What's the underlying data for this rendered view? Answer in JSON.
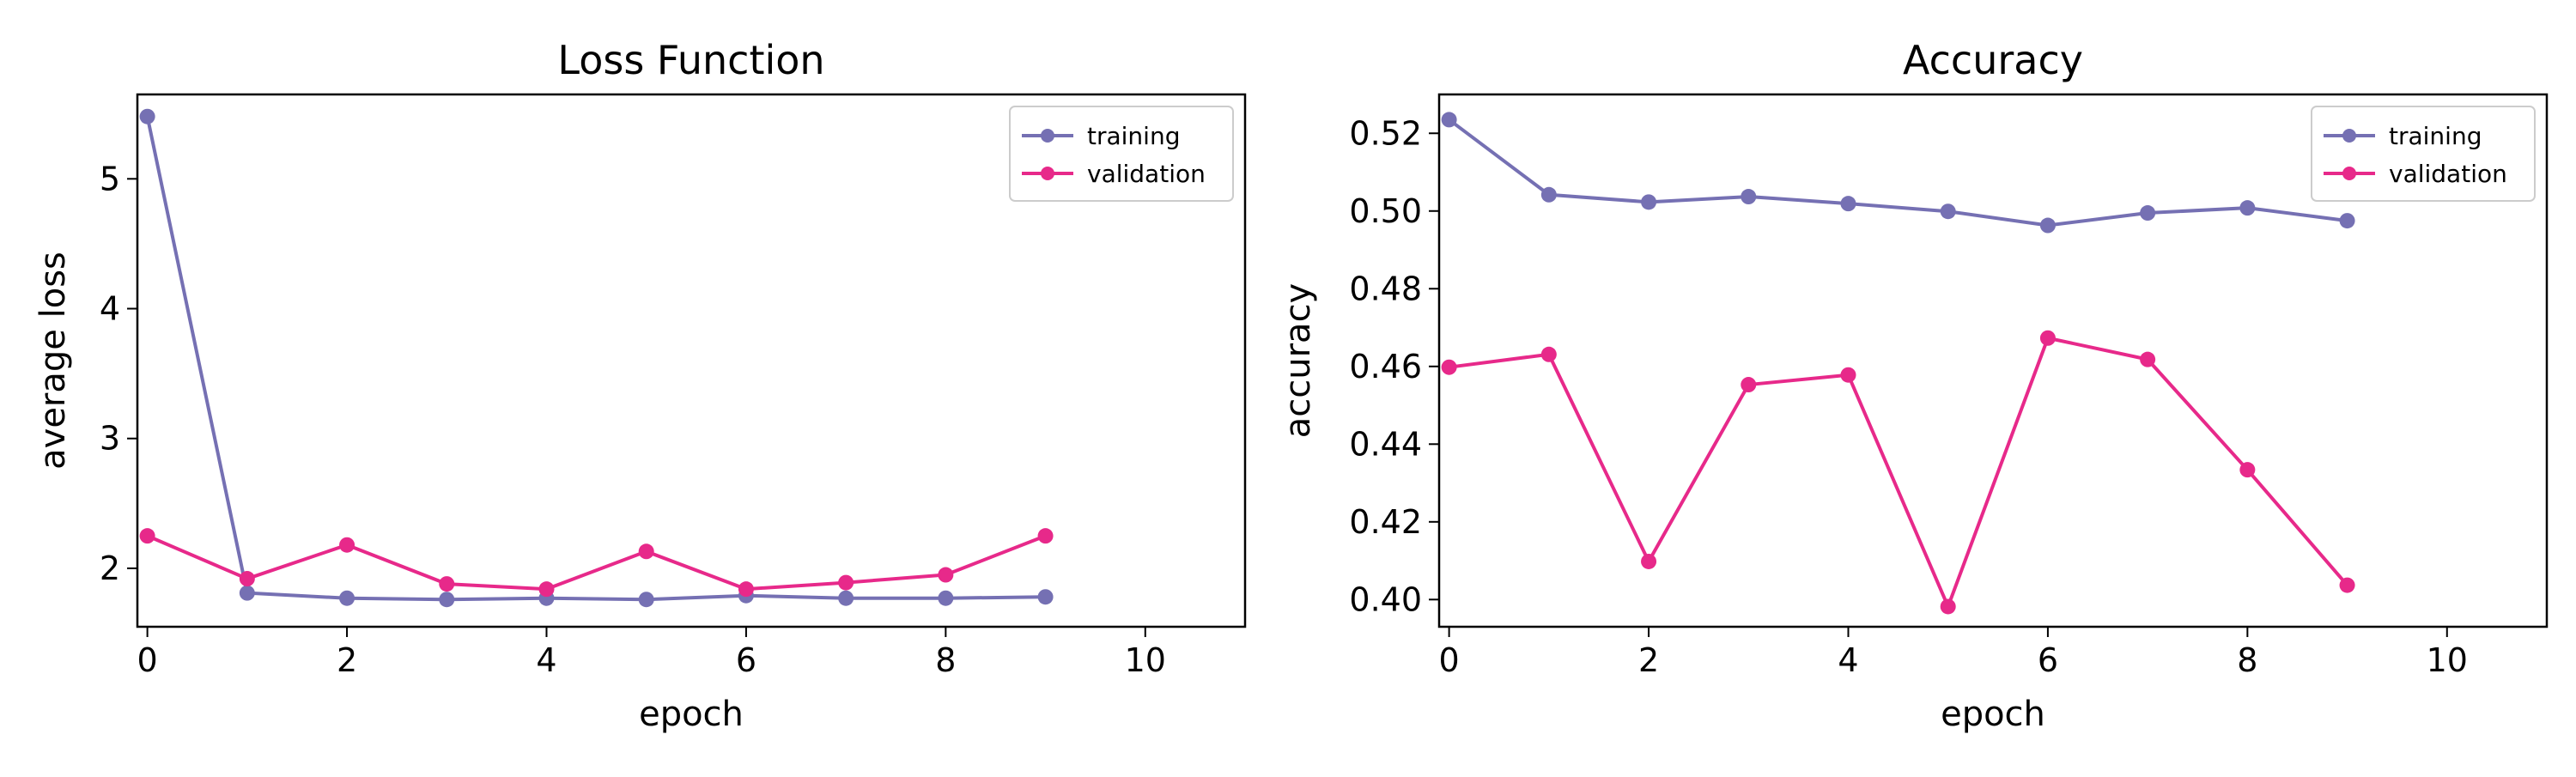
{
  "colors": {
    "training": "#7570b3",
    "validation": "#e7298a",
    "axes": "#000000",
    "background": "#ffffff"
  },
  "chart_data": [
    {
      "type": "line",
      "title": "Loss Function",
      "xlabel": "epoch",
      "ylabel": "average loss",
      "xlim": [
        -0.1,
        11
      ],
      "ylim": [
        1.55,
        5.65
      ],
      "xticks": [
        0,
        2,
        4,
        6,
        8,
        10
      ],
      "xtick_labels": [
        "0",
        "2",
        "4",
        "6",
        "8",
        "10"
      ],
      "yticks": [
        2,
        3,
        4,
        5
      ],
      "ytick_labels": [
        "2",
        "3",
        "4",
        "5"
      ],
      "grid": false,
      "legend": "top-right",
      "x": [
        0,
        1,
        2,
        3,
        4,
        5,
        6,
        7,
        8,
        9
      ],
      "series": [
        {
          "name": "training",
          "color": "#7570b3",
          "values": [
            5.48,
            1.81,
            1.77,
            1.76,
            1.77,
            1.76,
            1.79,
            1.77,
            1.77,
            1.78
          ]
        },
        {
          "name": "validation",
          "color": "#e7298a",
          "values": [
            2.25,
            1.92,
            2.18,
            1.88,
            1.84,
            2.13,
            1.84,
            1.89,
            1.95,
            2.25
          ]
        }
      ]
    },
    {
      "type": "line",
      "title": "Accuracy",
      "xlabel": "epoch",
      "ylabel": "accuracy",
      "xlim": [
        -0.1,
        11
      ],
      "ylim": [
        0.393,
        0.53
      ],
      "xticks": [
        0,
        2,
        4,
        6,
        8,
        10
      ],
      "xtick_labels": [
        "0",
        "2",
        "4",
        "6",
        "8",
        "10"
      ],
      "yticks": [
        0.4,
        0.42,
        0.44,
        0.46,
        0.48,
        0.5,
        0.52
      ],
      "ytick_labels": [
        "0.40",
        "0.42",
        "0.44",
        "0.46",
        "0.48",
        "0.50",
        "0.52"
      ],
      "grid": false,
      "legend": "top-right",
      "x": [
        0,
        1,
        2,
        3,
        4,
        5,
        6,
        7,
        8,
        9
      ],
      "series": [
        {
          "name": "training",
          "color": "#7570b3",
          "values": [
            0.5235,
            0.5042,
            0.5023,
            0.5037,
            0.5019,
            0.4999,
            0.4963,
            0.4995,
            0.5008,
            0.4975
          ]
        },
        {
          "name": "validation",
          "color": "#e7298a",
          "values": [
            0.4598,
            0.4631,
            0.4098,
            0.4553,
            0.4578,
            0.3982,
            0.4673,
            0.4618,
            0.4334,
            0.4037
          ]
        }
      ]
    }
  ]
}
